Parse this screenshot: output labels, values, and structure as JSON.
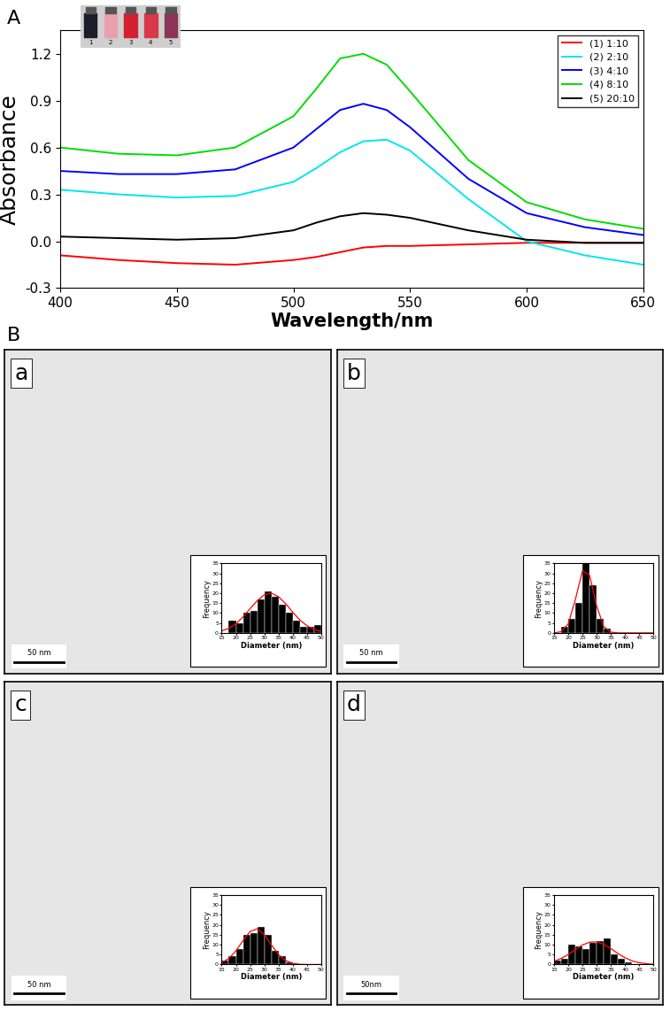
{
  "chart_data": [
    {
      "type": "line",
      "panel_label": "A",
      "x_label": "Wavelength/nm",
      "y_label": "Absorbance",
      "x": [
        400,
        425,
        450,
        475,
        500,
        510,
        520,
        530,
        540,
        550,
        575,
        600,
        625,
        650
      ],
      "series": [
        {
          "name": "(1) 1:10",
          "color": "#ff0000",
          "values": [
            -0.09,
            -0.12,
            -0.14,
            -0.15,
            -0.12,
            -0.1,
            -0.07,
            -0.04,
            -0.03,
            -0.03,
            -0.02,
            -0.01,
            -0.01,
            -0.01
          ]
        },
        {
          "name": "(2) 2:10",
          "color": "#00e5ee",
          "values": [
            0.33,
            0.3,
            0.28,
            0.29,
            0.38,
            0.47,
            0.57,
            0.64,
            0.65,
            0.58,
            0.27,
            0.0,
            -0.09,
            -0.15
          ]
        },
        {
          "name": "(3) 4:10",
          "color": "#0000ff",
          "values": [
            0.45,
            0.43,
            0.43,
            0.46,
            0.6,
            0.72,
            0.84,
            0.88,
            0.84,
            0.73,
            0.4,
            0.18,
            0.09,
            0.04
          ]
        },
        {
          "name": "(4) 8:10",
          "color": "#00dd00",
          "values": [
            0.6,
            0.56,
            0.55,
            0.6,
            0.8,
            0.98,
            1.17,
            1.2,
            1.13,
            0.96,
            0.52,
            0.25,
            0.14,
            0.08
          ]
        },
        {
          "name": "(5) 20:10",
          "color": "#000000",
          "values": [
            0.03,
            0.02,
            0.01,
            0.02,
            0.07,
            0.12,
            0.16,
            0.18,
            0.17,
            0.15,
            0.07,
            0.01,
            -0.01,
            -0.01
          ]
        }
      ],
      "xlim": [
        400,
        650
      ],
      "xticks": [
        400,
        450,
        500,
        550,
        600,
        650
      ],
      "ylim": [
        -0.3,
        1.35
      ],
      "yticks": [
        -0.3,
        {
          "value": 0,
          "label": "0.0"
        },
        0.3,
        0.6,
        0.9,
        1.2
      ],
      "legend": "upper right"
    },
    {
      "type": "histogram",
      "panel_label": "a",
      "scale_bar": "50 nm",
      "x_label": "Diameter (nm)",
      "y_label": "Frequency",
      "color": "#000000",
      "bins": [
        15,
        17.5,
        20,
        22.5,
        25,
        27.5,
        30,
        32.5,
        35,
        37.5,
        40,
        42.5,
        45,
        47.5,
        50
      ],
      "counts": [
        0,
        6,
        5,
        10,
        11,
        17,
        21,
        18,
        14,
        10,
        6,
        3,
        3,
        4
      ],
      "fit": {
        "type": "line",
        "color": "#ff0000",
        "x": [
          15,
          17.5,
          20,
          22.5,
          25,
          27.5,
          30,
          32.5,
          35,
          37.5,
          40,
          42.5,
          45,
          47.5,
          50
        ],
        "values": [
          1.0,
          2.3,
          4.6,
          8.0,
          12.2,
          16.2,
          19.2,
          20.0,
          18.2,
          14.7,
          10.4,
          6.5,
          3.6,
          1.7,
          0.7
        ]
      },
      "xlim": [
        15,
        50
      ],
      "xticks": [
        15,
        20,
        25,
        30,
        35,
        40,
        45,
        50
      ],
      "ylim": [
        0,
        35
      ],
      "yticks": [
        0,
        5,
        10,
        15,
        20,
        25,
        30,
        35
      ]
    },
    {
      "type": "histogram",
      "panel_label": "b",
      "scale_bar": "50 nm",
      "x_label": "Diameter (nm)",
      "y_label": "Frequency",
      "color": "#000000",
      "bins": [
        15,
        17.5,
        20,
        22.5,
        25,
        27.5,
        30,
        32.5,
        35,
        37.5,
        40,
        42.5,
        45,
        47.5,
        50
      ],
      "counts": [
        0,
        3,
        7,
        15,
        35,
        24,
        7,
        2,
        0,
        0,
        0,
        0,
        0,
        0
      ],
      "fit": {
        "type": "line",
        "color": "#ff0000",
        "x": [
          15,
          17.5,
          20,
          22.5,
          25,
          27.5,
          30,
          32.5,
          35,
          37.5,
          40,
          42.5,
          45,
          47.5,
          50
        ],
        "values": [
          0.0,
          0.6,
          4.5,
          16.7,
          31.2,
          29.1,
          13.6,
          3.1,
          0.4,
          0,
          0,
          0,
          0,
          0,
          0
        ]
      },
      "xlim": [
        15,
        50
      ],
      "xticks": [
        15,
        20,
        25,
        30,
        35,
        40,
        45,
        50
      ],
      "ylim": [
        0,
        35
      ],
      "yticks": [
        0,
        5,
        10,
        15,
        20,
        25,
        30,
        35
      ]
    },
    {
      "type": "histogram",
      "panel_label": "c",
      "scale_bar": "50 nm",
      "x_label": "Diameter (nm)",
      "y_label": "Frequency",
      "color": "#000000",
      "bins": [
        15,
        17.5,
        20,
        22.5,
        25,
        27.5,
        30,
        32.5,
        35,
        37.5,
        40,
        42.5,
        45,
        47.5,
        50
      ],
      "counts": [
        2,
        4,
        8,
        15,
        16,
        19,
        15,
        7,
        4,
        1,
        0,
        0,
        0,
        0
      ],
      "fit": {
        "type": "line",
        "color": "#ff0000",
        "x": [
          15,
          17.5,
          20,
          22.5,
          25,
          27.5,
          30,
          32.5,
          35,
          37.5,
          40,
          42.5,
          45,
          47.5,
          50
        ],
        "values": [
          1.0,
          3.0,
          6.8,
          12.0,
          16.6,
          17.9,
          15.0,
          9.8,
          5.0,
          2.0,
          0.6,
          0.1,
          0,
          0,
          0
        ]
      },
      "xlim": [
        15,
        50
      ],
      "xticks": [
        15,
        20,
        25,
        30,
        35,
        40,
        45,
        50
      ],
      "ylim": [
        0,
        35
      ],
      "yticks": [
        0,
        5,
        10,
        15,
        20,
        25,
        30,
        35
      ]
    },
    {
      "type": "histogram",
      "panel_label": "d",
      "scale_bar": "50nm",
      "x_label": "Diameter (nm)",
      "y_label": "Frequency",
      "color": "#000000",
      "bins": [
        15,
        17.5,
        20,
        22.5,
        25,
        27.5,
        30,
        32.5,
        35,
        37.5,
        40,
        42.5,
        45,
        47.5,
        50
      ],
      "counts": [
        2,
        3,
        10,
        9,
        8,
        11,
        12,
        13,
        5,
        3,
        1,
        0,
        0,
        0
      ],
      "fit": {
        "type": "line",
        "color": "#ff0000",
        "x": [
          15,
          17.5,
          20,
          22.5,
          25,
          27.5,
          30,
          32.5,
          35,
          37.5,
          40,
          42.5,
          45,
          47.5,
          50
        ],
        "values": [
          1.6,
          3.0,
          5.0,
          7.5,
          9.8,
          11.2,
          11.4,
          10.1,
          8.0,
          5.5,
          3.4,
          1.8,
          0.9,
          0.4,
          0.1
        ]
      },
      "xlim": [
        15,
        50
      ],
      "xticks": [
        15,
        20,
        25,
        30,
        35,
        40,
        45,
        50
      ],
      "ylim": [
        0,
        35
      ],
      "yticks": [
        0,
        5,
        10,
        15,
        20,
        25,
        30,
        35
      ]
    }
  ],
  "section_label": "B",
  "photo_labels": [
    "1",
    "2",
    "3",
    "4",
    "5"
  ]
}
